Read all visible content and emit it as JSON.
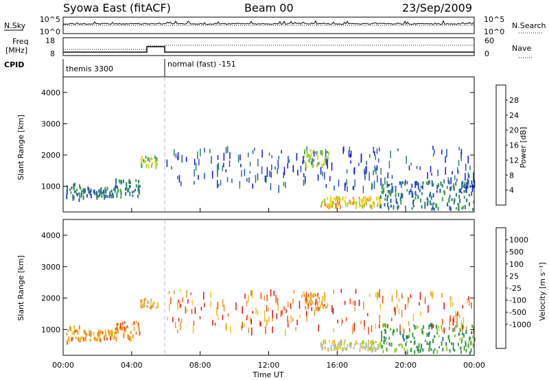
{
  "header": {
    "station": "Syowa East (fitACF)",
    "beam": "Beam 00",
    "date": "23/Sep/2009"
  },
  "status_panels": {
    "nsky_label": "N.Sky",
    "nsky_ticks": [
      "10^5",
      "10^0"
    ],
    "nsearch_label": "N.Search",
    "nsearch_ticks": [
      "10^5",
      "10^0"
    ],
    "freq_label_line1": "Freq",
    "freq_label_line2": "[MHz]",
    "freq_ticks": [
      "18",
      "8"
    ],
    "nave_label": "Nave",
    "nave_ticks": [
      "60",
      "0"
    ],
    "cpid_label": "CPID",
    "cpid_modes": [
      {
        "name": "themis 3300",
        "start_hour": 0,
        "end_hour": 6
      },
      {
        "name": "normal (fast) -151",
        "start_hour": 6,
        "end_hour": 24
      }
    ]
  },
  "colors": {
    "power_scale": [
      "#1010f0",
      "#2050c0",
      "#2a7a70",
      "#3aa040",
      "#90d030",
      "#f0d020",
      "#f09020",
      "#f05010",
      "#e01010"
    ],
    "velocity_scale": [
      "#e01010",
      "#f05010",
      "#f09020",
      "#f0c020",
      "#c0c0c0",
      "#90d030",
      "#3aa040",
      "#2a7a70",
      "#2050c0",
      "#1010f0"
    ]
  },
  "chart_data": [
    {
      "type": "heatmap",
      "name": "power",
      "ylabel": "Slant Range [km]",
      "yticks": [
        1000,
        2000,
        3000,
        4000
      ],
      "ylim": [
        180,
        4500
      ],
      "xlim": [
        0,
        24
      ],
      "colorbar_label": "Power [dB]",
      "colorbar_ticks": [
        4,
        8,
        12,
        16,
        20,
        24,
        28
      ],
      "colorbar_range": [
        0,
        32
      ],
      "echo_regions": [
        {
          "t0": 0.1,
          "t1": 1.0,
          "r0": 600,
          "r1": 1150,
          "value": 10
        },
        {
          "t0": 1.0,
          "t1": 3.0,
          "r0": 700,
          "r1": 1000,
          "value": 8
        },
        {
          "t0": 3.0,
          "t1": 4.5,
          "r0": 700,
          "r1": 1300,
          "value": 10
        },
        {
          "t0": 4.5,
          "t1": 5.5,
          "r0": 1700,
          "r1": 2000,
          "value": 16
        },
        {
          "t0": 15.0,
          "t1": 18.5,
          "r0": 400,
          "r1": 700,
          "value": 20
        },
        {
          "t0": 14.0,
          "t1": 15.5,
          "r0": 1700,
          "r1": 2200,
          "value": 18
        },
        {
          "t0": 18.5,
          "t1": 24.0,
          "r0": 300,
          "r1": 1200,
          "value": 10
        }
      ]
    },
    {
      "type": "heatmap",
      "name": "velocity",
      "ylabel": "Slant Range [km]",
      "yticks": [
        1000,
        2000,
        3000,
        4000
      ],
      "ylim": [
        180,
        4500
      ],
      "xlim": [
        0,
        24
      ],
      "colorbar_label": "Velocity [m s⁻¹]",
      "colorbar_ticks": [
        "1000",
        "500",
        "100",
        "25",
        "-25",
        "-100",
        "-500",
        "-1000"
      ],
      "echo_regions": [
        {
          "t0": 0.1,
          "t1": 1.0,
          "r0": 600,
          "r1": 1150,
          "value": -200
        },
        {
          "t0": 1.0,
          "t1": 3.0,
          "r0": 700,
          "r1": 1000,
          "value": -300
        },
        {
          "t0": 3.0,
          "t1": 4.5,
          "r0": 700,
          "r1": 1300,
          "value": -150
        },
        {
          "t0": 4.5,
          "t1": 5.5,
          "r0": 1700,
          "r1": 2000,
          "value": -80
        },
        {
          "t0": 15.0,
          "t1": 18.5,
          "r0": 400,
          "r1": 700,
          "value": 0
        },
        {
          "t0": 14.0,
          "t1": 15.5,
          "r0": 1700,
          "r1": 2200,
          "value": -200
        },
        {
          "t0": 18.5,
          "t1": 24.0,
          "r0": 300,
          "r1": 1200,
          "value": 150
        }
      ]
    }
  ],
  "time_axis": {
    "label": "Time UT",
    "ticks": [
      "00:00",
      "04:00",
      "08:00",
      "12:00",
      "16:00",
      "20:00",
      "00:00"
    ]
  }
}
